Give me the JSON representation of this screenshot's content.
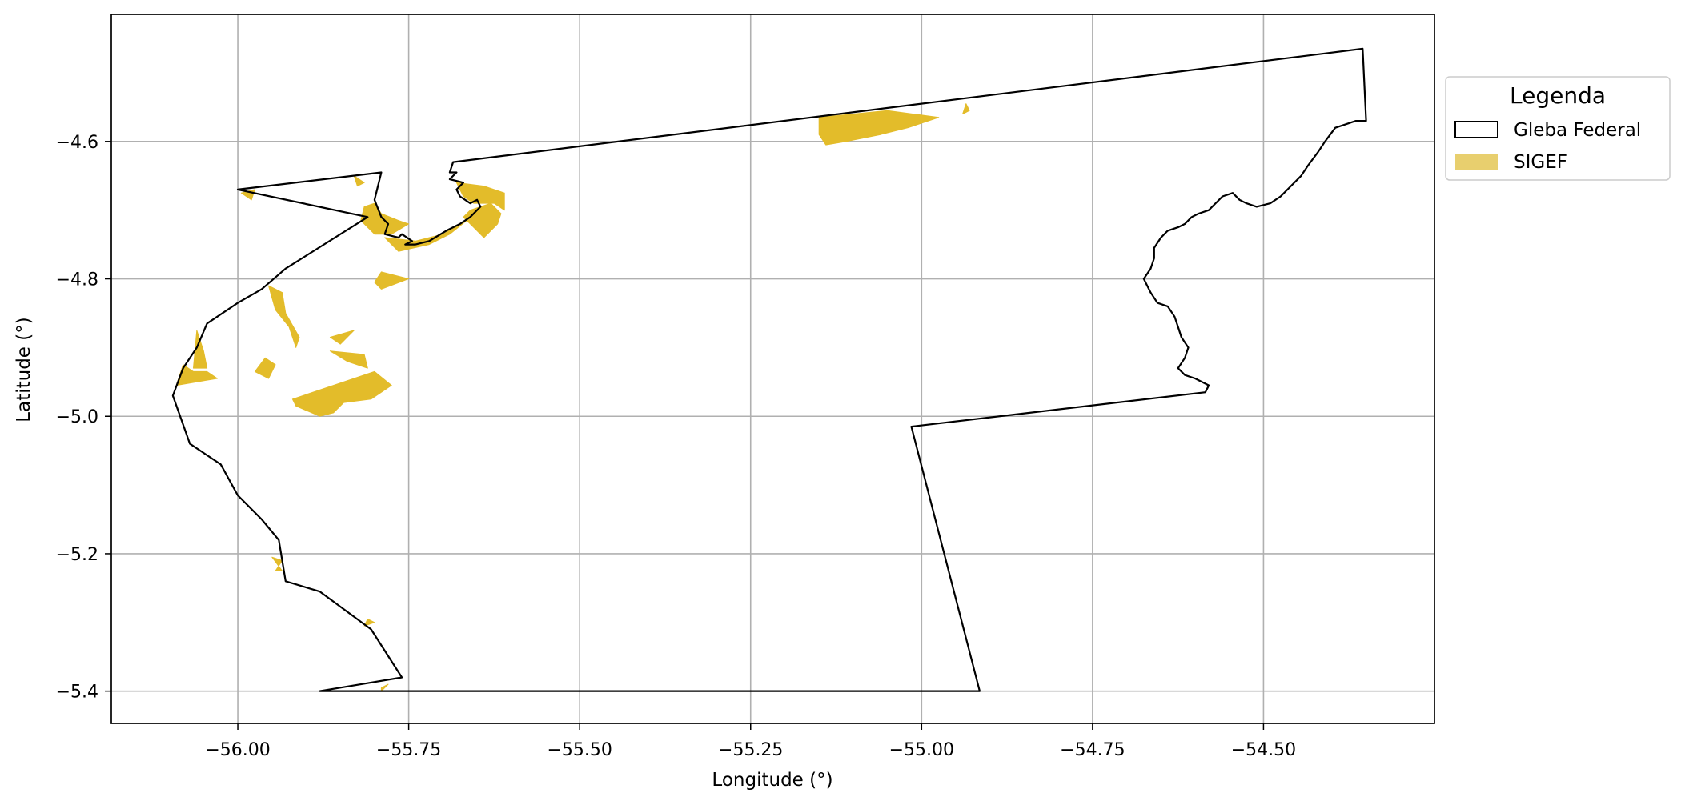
{
  "chart_data": {
    "type": "map",
    "xlabel": "Longitude (°)",
    "ylabel": "Latitude (°)",
    "xlim": [
      -56.185,
      -54.25
    ],
    "ylim": [
      -5.447,
      -4.415
    ],
    "x_ticks": [
      -56.0,
      -55.75,
      -55.5,
      -55.25,
      -55.0,
      -54.75,
      -54.5
    ],
    "x_tick_labels": [
      "−56.00",
      "−55.75",
      "−55.50",
      "−55.25",
      "−55.00",
      "−54.75",
      "−54.50"
    ],
    "y_ticks": [
      -4.6,
      -4.8,
      -5.0,
      -5.2,
      -5.4
    ],
    "y_tick_labels": [
      "−4.6",
      "−4.8",
      "−5.0",
      "−5.2",
      "−5.4"
    ],
    "grid": true,
    "legend": {
      "title": "Legenda",
      "placement": "outside-upper-right",
      "entries": [
        {
          "label": "Gleba Federal",
          "style": "outline",
          "color": "#000000"
        },
        {
          "label": "SIGEF",
          "style": "fill",
          "color": "#e8cf6e"
        }
      ]
    },
    "layers": [
      {
        "name": "Gleba Federal",
        "style": "outline",
        "color": "#000000",
        "coordinates": [
          [
            -55.88,
            -5.4
          ],
          [
            -55.82,
            -5.39
          ],
          [
            -55.76,
            -5.38
          ],
          [
            -55.805,
            -5.31
          ],
          [
            -55.88,
            -5.255
          ],
          [
            -55.93,
            -5.24
          ],
          [
            -55.94,
            -5.18
          ],
          [
            -55.965,
            -5.15
          ],
          [
            -56.0,
            -5.115
          ],
          [
            -56.025,
            -5.07
          ],
          [
            -56.07,
            -5.04
          ],
          [
            -56.095,
            -4.97
          ],
          [
            -56.08,
            -4.93
          ],
          [
            -56.06,
            -4.9
          ],
          [
            -56.045,
            -4.865
          ],
          [
            -56.0,
            -4.835
          ],
          [
            -55.965,
            -4.815
          ],
          [
            -55.93,
            -4.785
          ],
          [
            -55.81,
            -4.71
          ],
          [
            -56.0,
            -4.67
          ],
          [
            -55.79,
            -4.645
          ],
          [
            -55.8,
            -4.685
          ],
          [
            -55.79,
            -4.71
          ],
          [
            -55.78,
            -4.72
          ],
          [
            -55.785,
            -4.735
          ],
          [
            -55.765,
            -4.74
          ],
          [
            -55.76,
            -4.735
          ],
          [
            -55.745,
            -4.745
          ],
          [
            -55.755,
            -4.75
          ],
          [
            -55.74,
            -4.75
          ],
          [
            -55.72,
            -4.745
          ],
          [
            -55.695,
            -4.73
          ],
          [
            -55.675,
            -4.72
          ],
          [
            -55.66,
            -4.71
          ],
          [
            -55.645,
            -4.695
          ],
          [
            -55.65,
            -4.685
          ],
          [
            -55.66,
            -4.69
          ],
          [
            -55.675,
            -4.68
          ],
          [
            -55.68,
            -4.67
          ],
          [
            -55.67,
            -4.66
          ],
          [
            -55.69,
            -4.655
          ],
          [
            -55.68,
            -4.645
          ],
          [
            -55.69,
            -4.645
          ],
          [
            -55.685,
            -4.63
          ],
          [
            -54.355,
            -4.465
          ],
          [
            -54.35,
            -4.57
          ],
          [
            -54.365,
            -4.57
          ],
          [
            -54.38,
            -4.575
          ],
          [
            -54.395,
            -4.58
          ],
          [
            -54.41,
            -4.6
          ],
          [
            -54.42,
            -4.615
          ],
          [
            -54.435,
            -4.635
          ],
          [
            -54.445,
            -4.65
          ],
          [
            -54.46,
            -4.665
          ],
          [
            -54.475,
            -4.68
          ],
          [
            -54.49,
            -4.69
          ],
          [
            -54.51,
            -4.695
          ],
          [
            -54.525,
            -4.69
          ],
          [
            -54.535,
            -4.685
          ],
          [
            -54.545,
            -4.675
          ],
          [
            -54.56,
            -4.68
          ],
          [
            -54.57,
            -4.69
          ],
          [
            -54.58,
            -4.7
          ],
          [
            -54.595,
            -4.705
          ],
          [
            -54.605,
            -4.71
          ],
          [
            -54.615,
            -4.72
          ],
          [
            -54.625,
            -4.725
          ],
          [
            -54.64,
            -4.73
          ],
          [
            -54.65,
            -4.74
          ],
          [
            -54.66,
            -4.755
          ],
          [
            -54.66,
            -4.77
          ],
          [
            -54.665,
            -4.785
          ],
          [
            -54.675,
            -4.8
          ],
          [
            -54.665,
            -4.82
          ],
          [
            -54.655,
            -4.835
          ],
          [
            -54.64,
            -4.84
          ],
          [
            -54.63,
            -4.855
          ],
          [
            -54.625,
            -4.87
          ],
          [
            -54.62,
            -4.885
          ],
          [
            -54.61,
            -4.9
          ],
          [
            -54.615,
            -4.915
          ],
          [
            -54.625,
            -4.93
          ],
          [
            -54.615,
            -4.94
          ],
          [
            -54.6,
            -4.945
          ],
          [
            -54.58,
            -4.955
          ],
          [
            -54.585,
            -4.965
          ],
          [
            -55.015,
            -5.015
          ],
          [
            -54.915,
            -5.4
          ],
          [
            -55.88,
            -5.4
          ]
        ]
      },
      {
        "name": "SIGEF",
        "style": "fill",
        "color": "#e3bc2a",
        "polygons": [
          [
            [
              -55.815,
              -4.695
            ],
            [
              -55.8,
              -4.69
            ],
            [
              -55.79,
              -4.705
            ],
            [
              -55.765,
              -4.715
            ],
            [
              -55.75,
              -4.72
            ],
            [
              -55.775,
              -4.735
            ],
            [
              -55.8,
              -4.735
            ],
            [
              -55.82,
              -4.715
            ]
          ],
          [
            [
              -55.785,
              -4.74
            ],
            [
              -55.74,
              -4.745
            ],
            [
              -55.7,
              -4.735
            ],
            [
              -55.665,
              -4.715
            ],
            [
              -55.69,
              -4.735
            ],
            [
              -55.72,
              -4.75
            ],
            [
              -55.765,
              -4.76
            ]
          ],
          [
            [
              -55.68,
              -4.66
            ],
            [
              -55.67,
              -4.68
            ],
            [
              -55.655,
              -4.69
            ],
            [
              -55.625,
              -4.69
            ],
            [
              -55.61,
              -4.7
            ],
            [
              -55.61,
              -4.675
            ],
            [
              -55.64,
              -4.665
            ]
          ],
          [
            [
              -55.66,
              -4.7
            ],
            [
              -55.63,
              -4.69
            ],
            [
              -55.615,
              -4.705
            ],
            [
              -55.62,
              -4.72
            ],
            [
              -55.64,
              -4.74
            ],
            [
              -55.655,
              -4.725
            ],
            [
              -55.67,
              -4.71
            ]
          ],
          [
            [
              -55.15,
              -4.565
            ],
            [
              -55.05,
              -4.555
            ],
            [
              -54.975,
              -4.565
            ],
            [
              -55.02,
              -4.58
            ],
            [
              -55.06,
              -4.59
            ],
            [
              -55.11,
              -4.6
            ],
            [
              -55.14,
              -4.605
            ],
            [
              -55.15,
              -4.59
            ]
          ],
          [
            [
              -54.935,
              -4.545
            ],
            [
              -54.93,
              -4.555
            ],
            [
              -54.94,
              -4.56
            ]
          ],
          [
            [
              -55.83,
              -4.65
            ],
            [
              -55.815,
              -4.66
            ],
            [
              -55.825,
              -4.665
            ]
          ],
          [
            [
              -55.995,
              -4.675
            ],
            [
              -55.975,
              -4.67
            ],
            [
              -55.98,
              -4.685
            ]
          ],
          [
            [
              -55.79,
              -4.79
            ],
            [
              -55.75,
              -4.8
            ],
            [
              -55.79,
              -4.815
            ],
            [
              -55.8,
              -4.805
            ]
          ],
          [
            [
              -55.935,
              -4.82
            ],
            [
              -55.955,
              -4.81
            ],
            [
              -55.945,
              -4.845
            ],
            [
              -55.925,
              -4.87
            ],
            [
              -55.915,
              -4.9
            ],
            [
              -55.91,
              -4.885
            ],
            [
              -55.93,
              -4.85
            ]
          ],
          [
            [
              -55.865,
              -4.885
            ],
            [
              -55.83,
              -4.875
            ],
            [
              -55.85,
              -4.895
            ]
          ],
          [
            [
              -55.865,
              -4.905
            ],
            [
              -55.815,
              -4.91
            ],
            [
              -55.81,
              -4.93
            ],
            [
              -55.84,
              -4.92
            ]
          ],
          [
            [
              -56.06,
              -4.875
            ],
            [
              -56.05,
              -4.905
            ],
            [
              -56.045,
              -4.93
            ],
            [
              -56.065,
              -4.93
            ]
          ],
          [
            [
              -56.08,
              -4.925
            ],
            [
              -56.065,
              -4.935
            ],
            [
              -56.045,
              -4.935
            ],
            [
              -56.03,
              -4.945
            ],
            [
              -56.06,
              -4.95
            ],
            [
              -56.09,
              -4.955
            ]
          ],
          [
            [
              -55.96,
              -4.915
            ],
            [
              -55.975,
              -4.935
            ],
            [
              -55.955,
              -4.945
            ],
            [
              -55.945,
              -4.925
            ]
          ],
          [
            [
              -55.92,
              -4.975
            ],
            [
              -55.86,
              -4.955
            ],
            [
              -55.8,
              -4.935
            ],
            [
              -55.775,
              -4.955
            ],
            [
              -55.805,
              -4.975
            ],
            [
              -55.845,
              -4.98
            ],
            [
              -55.86,
              -4.995
            ],
            [
              -55.88,
              -5.0
            ],
            [
              -55.915,
              -4.985
            ]
          ],
          [
            [
              -55.95,
              -5.205
            ],
            [
              -55.935,
              -5.21
            ],
            [
              -55.945,
              -5.225
            ],
            [
              -55.935,
              -5.225
            ]
          ],
          [
            [
              -55.81,
              -5.295
            ],
            [
              -55.8,
              -5.3
            ],
            [
              -55.815,
              -5.305
            ]
          ],
          [
            [
              -55.79,
              -5.395
            ],
            [
              -55.78,
              -5.39
            ],
            [
              -55.79,
              -5.4
            ]
          ]
        ]
      }
    ]
  }
}
